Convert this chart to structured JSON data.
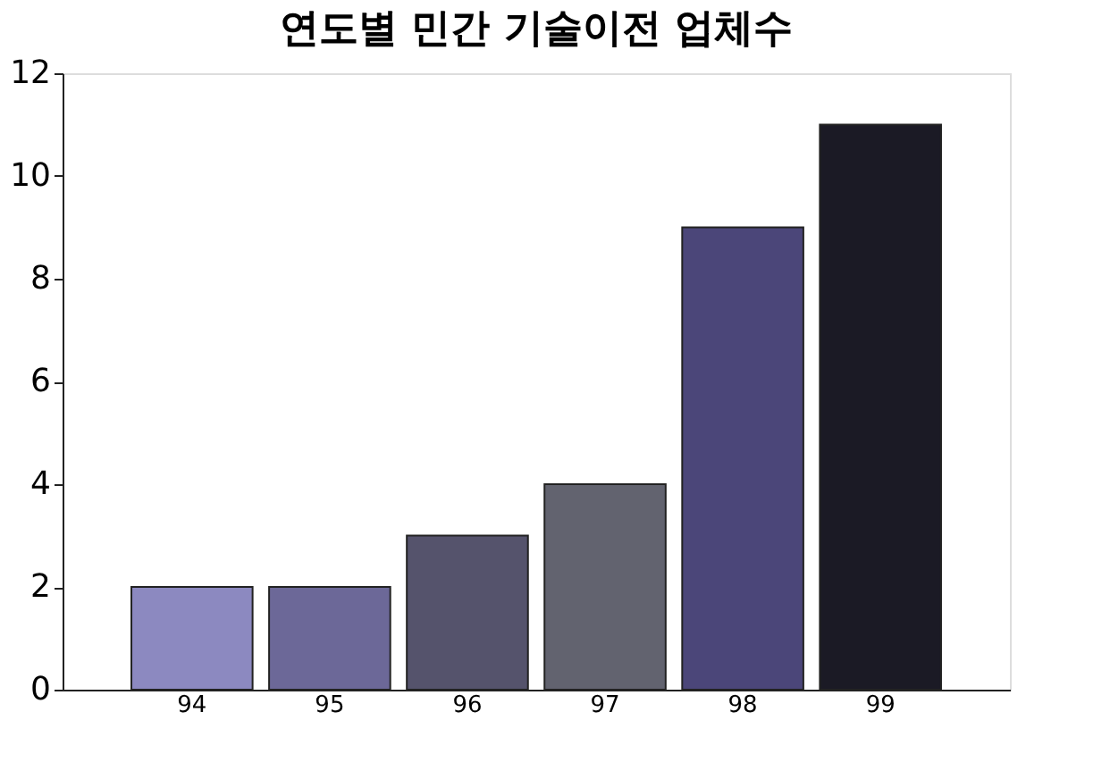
{
  "chart_data": {
    "type": "bar",
    "title": "연도별 민간 기술이전 업체수",
    "categories": [
      "94",
      "95",
      "96",
      "97",
      "98",
      "99"
    ],
    "values": [
      2,
      2,
      3,
      4,
      9,
      11
    ],
    "colors": [
      "#8c89c0",
      "#6c6898",
      "#55536c",
      "#62636f",
      "#4b4679",
      "#1b1a25"
    ],
    "ylim": [
      0,
      12
    ],
    "yticks": [
      0,
      2,
      4,
      6,
      8,
      10,
      12
    ],
    "grid": false
  }
}
